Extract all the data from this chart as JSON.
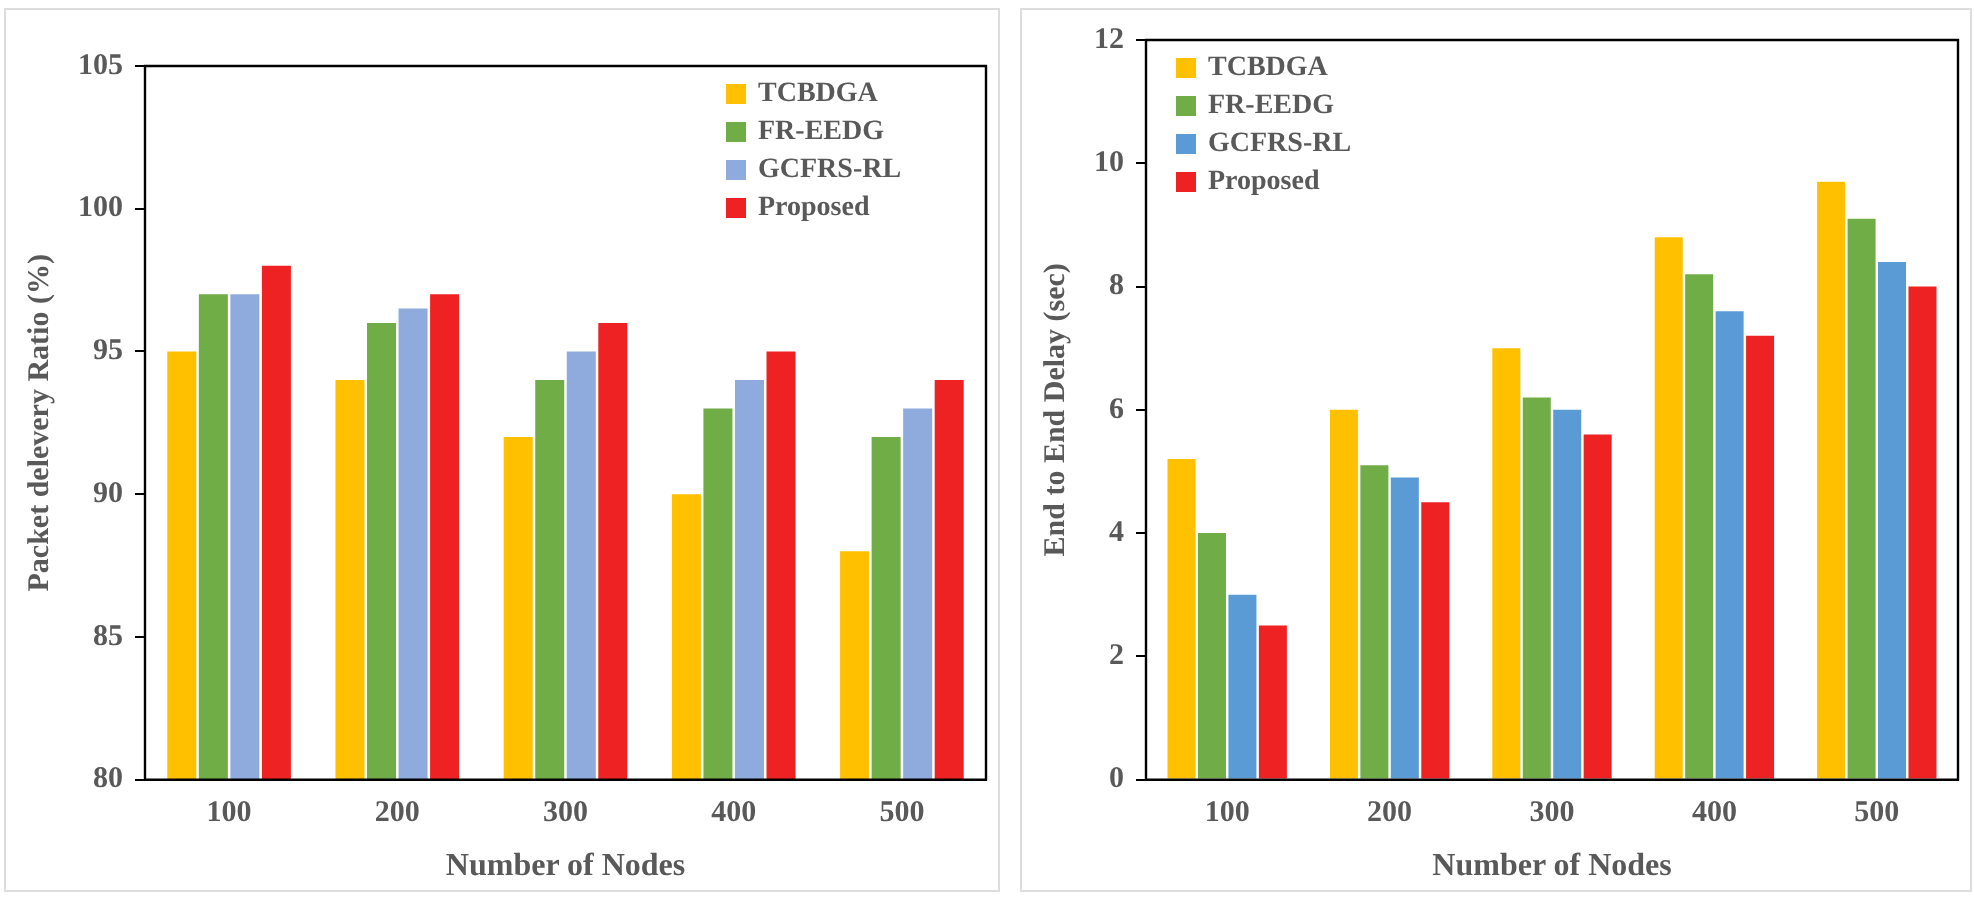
{
  "chart_data": [
    {
      "type": "bar",
      "xlabel": "Number of Nodes",
      "ylabel": "Packet delevery Ratio (%)",
      "categories": [
        "100",
        "200",
        "300",
        "400",
        "500"
      ],
      "ylim": [
        80,
        105
      ],
      "yticks": [
        80,
        85,
        90,
        95,
        100,
        105
      ],
      "grid": false,
      "legend": "top right",
      "series": [
        {
          "name": "TCBDGA",
          "color": "#ffc000",
          "values": [
            95,
            94,
            92,
            90,
            88
          ]
        },
        {
          "name": "FR-EEDG",
          "color": "#70ad47",
          "values": [
            97,
            96,
            94,
            93,
            92
          ]
        },
        {
          "name": "GCFRS-RL",
          "color": "#8faadc",
          "values": [
            97,
            96.5,
            95,
            94,
            93
          ]
        },
        {
          "name": "Proposed",
          "color": "#ee2222",
          "values": [
            98,
            97,
            96,
            95,
            94
          ]
        }
      ]
    },
    {
      "type": "bar",
      "xlabel": "Number of Nodes",
      "ylabel": "End to End Delay (sec)",
      "categories": [
        "100",
        "200",
        "300",
        "400",
        "500"
      ],
      "ylim": [
        0,
        12
      ],
      "yticks": [
        0,
        2,
        4,
        6,
        8,
        10,
        12
      ],
      "grid": false,
      "legend": "top left",
      "series": [
        {
          "name": "TCBDGA",
          "color": "#ffc000",
          "values": [
            5.2,
            6,
            7,
            8.8,
            9.7
          ]
        },
        {
          "name": "FR-EEDG",
          "color": "#70ad47",
          "values": [
            4,
            5.1,
            6.2,
            8.2,
            9.1
          ]
        },
        {
          "name": "GCFRS-RL",
          "color": "#5b9bd5",
          "values": [
            3,
            4.9,
            6,
            7.6,
            8.4
          ]
        },
        {
          "name": "Proposed",
          "color": "#ee2222",
          "values": [
            2.5,
            4.5,
            5.6,
            7.2,
            8
          ]
        }
      ]
    }
  ]
}
